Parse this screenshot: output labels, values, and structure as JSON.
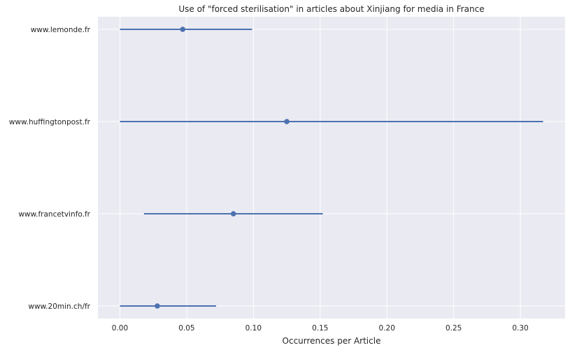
{
  "chart_data": {
    "type": "pointrange",
    "title": "Use of \"forced sterilisation\" in articles about Xinjiang for media in France",
    "xlabel": "Occurrences per Article",
    "ylabel": "",
    "xlim": [
      -0.0165,
      0.3335
    ],
    "xticks": [
      0.0,
      0.05,
      0.1,
      0.15,
      0.2,
      0.25,
      0.3
    ],
    "xtick_labels": [
      "0.00",
      "0.05",
      "0.10",
      "0.15",
      "0.20",
      "0.25",
      "0.30"
    ],
    "grid": true,
    "categories": [
      "www.lemonde.fr",
      "www.huffingtonpost.fr",
      "www.francetvinfo.fr",
      "www.20min.ch/fr"
    ],
    "values": [
      0.047,
      0.125,
      0.085,
      0.028
    ],
    "ci_low": [
      0.0,
      0.0,
      0.018,
      0.0
    ],
    "ci_high": [
      0.099,
      0.317,
      0.152,
      0.072
    ],
    "colors": {
      "background": "#eaeaf2",
      "grid": "#ffffff",
      "marker": "#4c72b0"
    }
  }
}
